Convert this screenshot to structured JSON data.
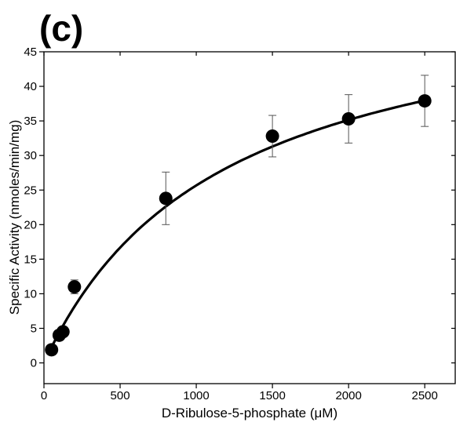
{
  "panel_label": "(c)",
  "chart_data": {
    "type": "scatter",
    "xlabel": "D-Ribulose-5-phosphate (μM)",
    "ylabel": "Specific Activity (nmoles/min/mg)",
    "xlim": [
      0,
      2700
    ],
    "ylim": [
      -3,
      45
    ],
    "x_ticks": [
      0,
      500,
      1000,
      1500,
      2000,
      2500
    ],
    "y_ticks": [
      0,
      5,
      10,
      15,
      20,
      25,
      30,
      35,
      40,
      45
    ],
    "grid": false,
    "points": [
      {
        "x": 50,
        "y": 1.9,
        "err": 0
      },
      {
        "x": 100,
        "y": 4.0,
        "err": 0
      },
      {
        "x": 125,
        "y": 4.5,
        "err": 0
      },
      {
        "x": 200,
        "y": 11.0,
        "err": 1.0
      },
      {
        "x": 800,
        "y": 23.8,
        "err": 3.8
      },
      {
        "x": 1500,
        "y": 32.8,
        "err": 3.0
      },
      {
        "x": 2000,
        "y": 35.3,
        "err": 3.5
      },
      {
        "x": 2500,
        "y": 37.9,
        "err": 3.7
      }
    ],
    "fit": {
      "type": "michaelis-menten",
      "vmax": 55.7,
      "km": 1170
    }
  }
}
